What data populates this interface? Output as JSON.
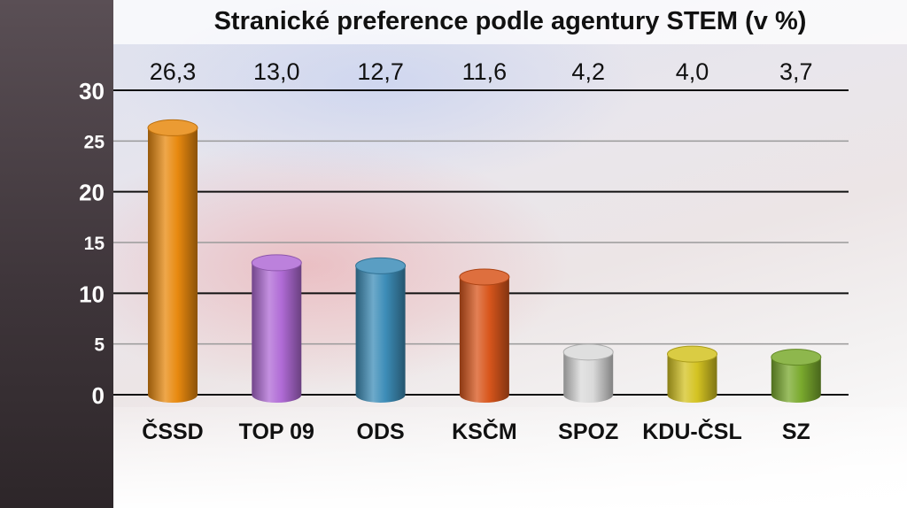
{
  "title": "Stranické preference podle agentury STEM (v %)",
  "chart_data": {
    "type": "bar",
    "title": "Stranické preference podle agentury STEM (v %)",
    "categories": [
      "ČSSD",
      "TOP 09",
      "ODS",
      "KSČM",
      "SPOZ",
      "KDU-ČSL",
      "SZ"
    ],
    "values": [
      26.3,
      13.0,
      12.7,
      11.6,
      4.2,
      4.0,
      3.7
    ],
    "value_labels": [
      "26,3",
      "13,0",
      "12,7",
      "11,6",
      "4,2",
      "4,0",
      "3,7"
    ],
    "y_ticks": [
      "0",
      "5",
      "10",
      "15",
      "20",
      "25",
      "30"
    ],
    "ylim": [
      0,
      30
    ],
    "grid": true,
    "legend": "none",
    "colors": [
      "#e8890f",
      "#b06bd6",
      "#3d8db8",
      "#d8561c",
      "#d9d9d9",
      "#d4c322",
      "#7aaa2e"
    ]
  }
}
